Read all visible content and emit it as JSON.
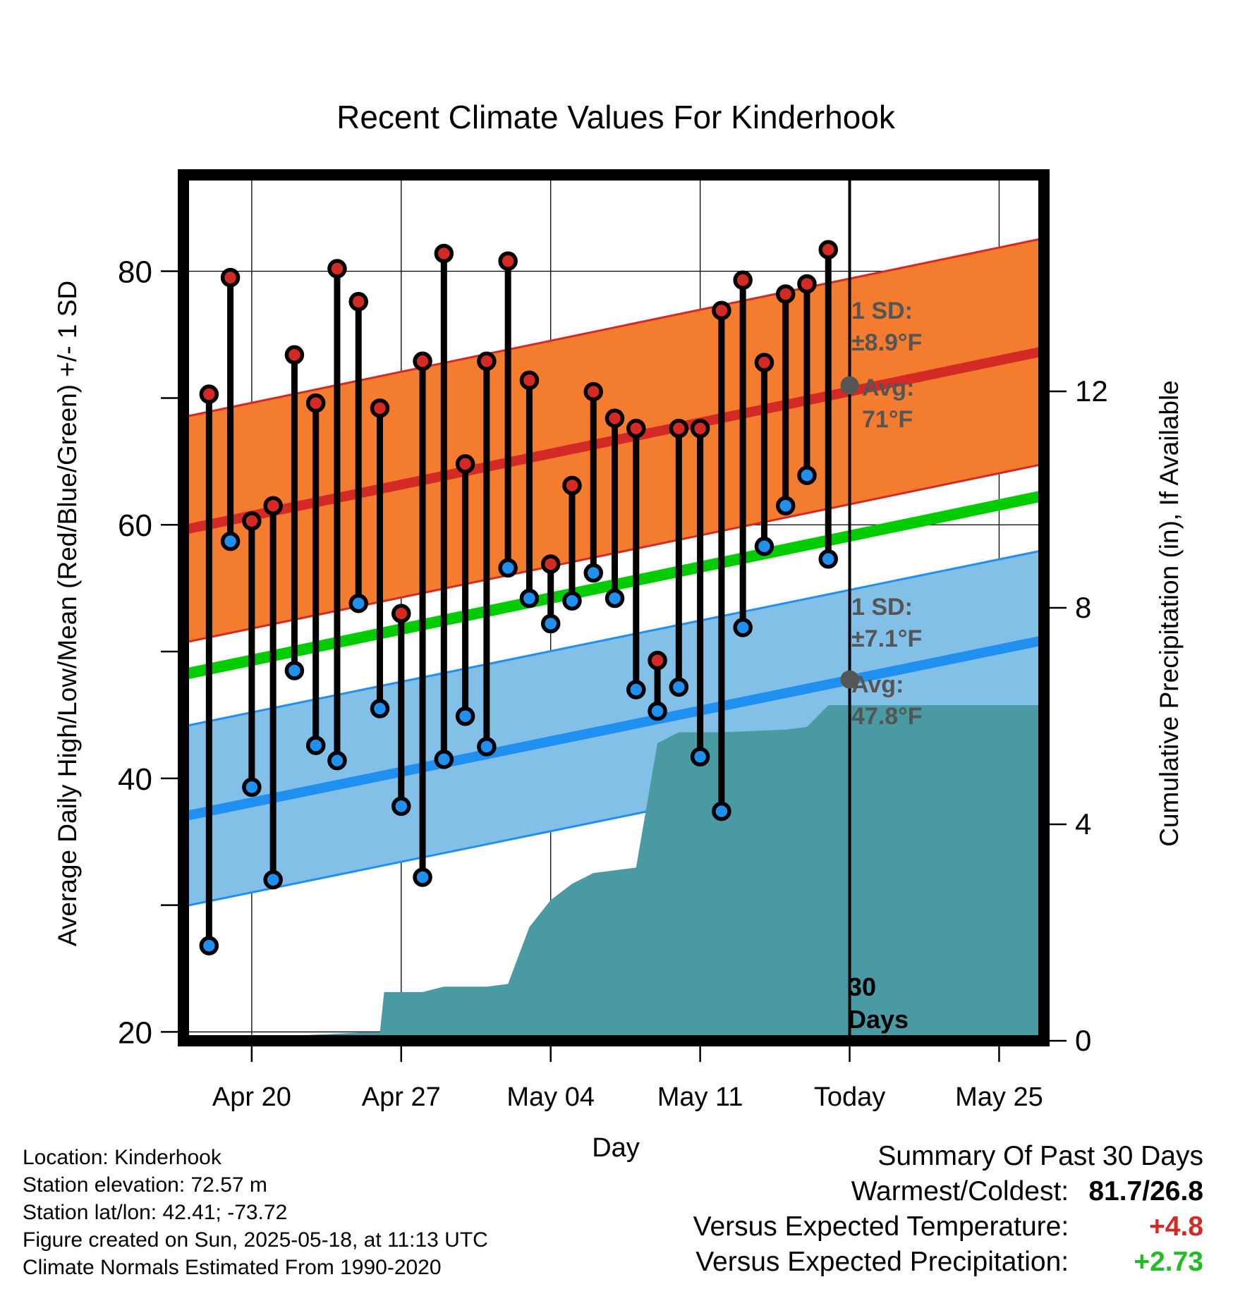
{
  "chart_data": {
    "type": "line",
    "title": "Recent Climate Values For Kinderhook",
    "xlabel": "Day",
    "ylabel": "Average Daily High/Low/Mean (Red/Blue/Green) +/- 1 SD",
    "y2label": "Cumulative Precipitation (in), If Available",
    "ylim": [
      19.3,
      87.6
    ],
    "y_ticks": [
      20,
      40,
      60,
      80
    ],
    "y2lim": [
      0,
      16
    ],
    "y2_ticks": [
      0,
      4,
      8,
      12
    ],
    "x_ticks": [
      {
        "day": 0,
        "label": "Apr 20"
      },
      {
        "day": 7,
        "label": "Apr 27"
      },
      {
        "day": 14,
        "label": "May 04"
      },
      {
        "day": 21,
        "label": "May 11"
      },
      {
        "day": 28,
        "label": "Today"
      },
      {
        "day": 35,
        "label": "May 25"
      }
    ],
    "xlim_days": [
      -3.2,
      37.1
    ],
    "grid": true,
    "days": [
      -2,
      -1,
      0,
      1,
      2,
      3,
      4,
      5,
      6,
      7,
      8,
      9,
      10,
      11,
      12,
      13,
      14,
      15,
      16,
      17,
      18,
      19,
      20,
      21,
      22,
      23,
      24,
      25,
      26,
      27
    ],
    "highs": [
      70.3,
      79.5,
      60.3,
      61.5,
      73.4,
      69.6,
      80.2,
      77.6,
      69.2,
      53,
      72.9,
      81.4,
      64.8,
      72.9,
      80.8,
      71.4,
      56.9,
      63.1,
      70.5,
      68.4,
      67.6,
      49.3,
      67.6,
      67.6,
      76.9,
      79.3,
      72.8,
      78.2,
      79,
      81.7
    ],
    "lows": [
      26.8,
      58.7,
      39.3,
      32,
      48.5,
      42.6,
      41.4,
      53.8,
      45.5,
      37.8,
      32.2,
      41.5,
      44.9,
      42.5,
      56.6,
      54.2,
      52.2,
      54,
      56.2,
      54.2,
      47,
      45.3,
      47.2,
      41.7,
      37.4,
      51.9,
      58.3,
      61.5,
      63.9,
      57.3
    ],
    "normal_high": {
      "start": 59.6,
      "end": 73.7,
      "sd": 8.9,
      "today_avg": 71
    },
    "normal_low": {
      "start": 37,
      "end": 50.9,
      "sd": 7.1,
      "today_avg": 47.8
    },
    "normal_mean": {
      "start": 48.2,
      "end": 62.3
    },
    "precip_cumulative": [
      {
        "day": -3.2,
        "value": 0
      },
      {
        "day": 5,
        "value": 0.15
      },
      {
        "day": 6,
        "value": 0.15
      },
      {
        "day": 6.2,
        "value": 0.9
      },
      {
        "day": 8,
        "value": 0.9
      },
      {
        "day": 9,
        "value": 1
      },
      {
        "day": 11,
        "value": 1
      },
      {
        "day": 12,
        "value": 1.05
      },
      {
        "day": 13,
        "value": 2.1
      },
      {
        "day": 14,
        "value": 2.6
      },
      {
        "day": 15,
        "value": 2.9
      },
      {
        "day": 16,
        "value": 3.1
      },
      {
        "day": 17,
        "value": 3.15
      },
      {
        "day": 18,
        "value": 3.2
      },
      {
        "day": 19,
        "value": 5.5
      },
      {
        "day": 20,
        "value": 5.7
      },
      {
        "day": 22,
        "value": 5.7
      },
      {
        "day": 25,
        "value": 5.75
      },
      {
        "day": 26,
        "value": 5.8
      },
      {
        "day": 27,
        "value": 6.2
      },
      {
        "day": 37.1,
        "value": 6.2
      }
    ],
    "colors": {
      "high_band": "#f47c2e",
      "high_line": "#d42a26",
      "low_band": "#82c0e8",
      "low_line": "#1f8ff0",
      "mean_line": "#00cc00",
      "precip": "#4a9aa3",
      "high_dot": "#d42a26",
      "low_dot": "#1f8ff0",
      "annotation": "#555555"
    },
    "annotations": {
      "high_sd_label": "1 SD:",
      "high_sd_value": "±8.9°F",
      "high_avg_label": "Avg:",
      "high_avg_value": "71°F",
      "low_sd_label": "1 SD:",
      "low_sd_value": "±7.1°F",
      "low_avg_label": "Avg:",
      "low_avg_value": "47.8°F",
      "days_number": "30",
      "days_label": "Days"
    }
  },
  "info": {
    "location": "Location: Kinderhook",
    "elevation": "Station elevation: 72.57 m",
    "latlon": "Station lat/lon: 42.41; -73.72",
    "created": "Figure created on Sun, 2025-05-18, at 11:13 UTC",
    "normals": "Climate Normals Estimated From 1990-2020"
  },
  "summary": {
    "title": "Summary Of Past 30 Days",
    "warm_cold_label": "Warmest/Coldest:",
    "warm_cold_value": "81.7/26.8",
    "temp_label": "Versus Expected Temperature:",
    "temp_value": "+4.8",
    "temp_color": "#d42a26",
    "precip_label": "Versus Expected Precipitation:",
    "precip_value": "+2.73",
    "precip_color": "#22bb22"
  }
}
